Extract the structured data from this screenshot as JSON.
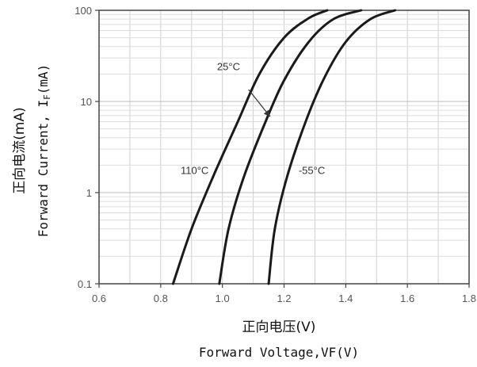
{
  "chart_data": {
    "type": "line",
    "xlabel_cn": "正向电压(V)",
    "xlabel_en": "Forward Voltage,VF(V)",
    "ylabel_cn": "正向电流(mA)",
    "ylabel_en_prefix": "Forward Current, I",
    "ylabel_en_sub": "F",
    "ylabel_en_suffix": "(mA)",
    "xlim": [
      0.6,
      1.8
    ],
    "ylim": [
      0.1,
      100
    ],
    "yscale": "log",
    "grid": true,
    "x_ticks": [
      0.6,
      0.8,
      1.0,
      1.2,
      1.4,
      1.6,
      1.8
    ],
    "x_tick_labels": [
      "0.6",
      "0.8",
      "1.0",
      "1.2",
      "1.4",
      "1.6",
      "1.8"
    ],
    "y_ticks": [
      0.1,
      1,
      10,
      100
    ],
    "y_tick_labels": [
      "0.1",
      "1",
      "10",
      "100"
    ],
    "series": [
      {
        "name": "110°C",
        "points": [
          [
            0.84,
            0.1
          ],
          [
            0.9,
            0.4
          ],
          [
            0.97,
            1.5
          ],
          [
            1.05,
            6
          ],
          [
            1.12,
            20
          ],
          [
            1.2,
            50
          ],
          [
            1.28,
            82
          ],
          [
            1.34,
            100
          ]
        ]
      },
      {
        "name": "25°C",
        "points": [
          [
            0.99,
            0.1
          ],
          [
            1.02,
            0.4
          ],
          [
            1.07,
            1.5
          ],
          [
            1.14,
            6
          ],
          [
            1.2,
            17
          ],
          [
            1.28,
            45
          ],
          [
            1.36,
            80
          ],
          [
            1.45,
            100
          ]
        ]
      },
      {
        "name": "-55°C",
        "points": [
          [
            1.15,
            0.1
          ],
          [
            1.17,
            0.4
          ],
          [
            1.21,
            1.5
          ],
          [
            1.27,
            6
          ],
          [
            1.33,
            18
          ],
          [
            1.4,
            45
          ],
          [
            1.48,
            80
          ],
          [
            1.56,
            100
          ]
        ]
      }
    ],
    "annotations": [
      {
        "text": "110°C",
        "x": 0.91,
        "y": 1.6
      },
      {
        "text": "25°C",
        "x": 1.02,
        "y": 22
      },
      {
        "text": "-55°C",
        "x": 1.29,
        "y": 1.6
      }
    ]
  }
}
